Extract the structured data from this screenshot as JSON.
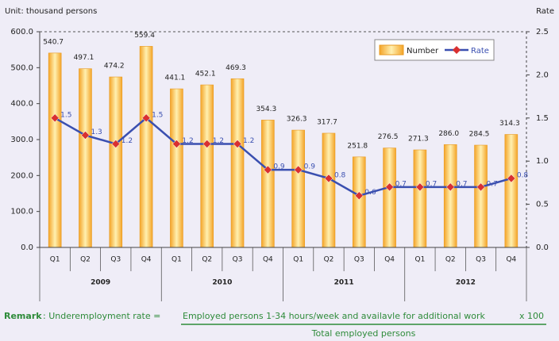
{
  "chart_data": {
    "type": "bar_line",
    "y_axis_label": "Unit: thousand persons",
    "y2_axis_label": "Rate",
    "categories": [
      "Q1",
      "Q2",
      "Q3",
      "Q4",
      "Q1",
      "Q2",
      "Q3",
      "Q4",
      "Q1",
      "Q2",
      "Q3",
      "Q4",
      "Q1",
      "Q2",
      "Q3",
      "Q4"
    ],
    "groups": [
      "2009",
      "2010",
      "2011",
      "2012"
    ],
    "series": [
      {
        "name": "Number",
        "color": "#f5b236",
        "values": [
          540.7,
          497.1,
          474.2,
          559.4,
          441.1,
          452.1,
          469.3,
          354.3,
          326.3,
          317.7,
          251.8,
          276.5,
          271.3,
          286.0,
          284.5,
          314.3
        ],
        "value_labels": [
          "540.7",
          "497.1",
          "474.2",
          "559.4",
          "441.1",
          "452.1",
          "469.3",
          "354.3",
          "326.3",
          "317.7",
          "251.8",
          "276.5",
          "271.3",
          "286.0",
          "284.5",
          "314.3"
        ]
      },
      {
        "name": "Rate",
        "color": "#3a4fb0",
        "marker_color": "#d93030",
        "axis": "y2",
        "values": [
          1.5,
          1.3,
          1.2,
          1.5,
          1.2,
          1.2,
          1.2,
          0.9,
          0.9,
          0.8,
          0.6,
          0.7,
          0.7,
          0.7,
          0.7,
          0.8
        ]
      }
    ],
    "ylim": [
      0,
      600
    ],
    "yticks": [
      {
        "value": 0,
        "label": "0.0"
      },
      {
        "value": 100,
        "label": "100.0"
      },
      {
        "value": 200,
        "label": "200.0"
      },
      {
        "value": 300,
        "label": "300.0"
      },
      {
        "value": 400,
        "label": "400.0"
      },
      {
        "value": 500,
        "label": "500.0"
      },
      {
        "value": 600,
        "label": "600.0"
      }
    ],
    "y2lim": [
      0,
      2.5
    ],
    "y2ticks": [
      {
        "value": 0,
        "label": "0.0"
      },
      {
        "value": 0.5,
        "label": "0.5"
      },
      {
        "value": 1,
        "label": "1.0"
      },
      {
        "value": 1.5,
        "label": "1.5"
      },
      {
        "value": 2,
        "label": "2.0"
      },
      {
        "value": 2.5,
        "label": "2.5"
      }
    ],
    "legend": "top-right"
  },
  "remark": {
    "label": "Remark",
    "lhs": ": Underemployment rate =",
    "numerator": "Employed persons 1-34 hours/week and availavle for additional work",
    "multiplier": "x  100",
    "denominator": "Total employed persons"
  }
}
